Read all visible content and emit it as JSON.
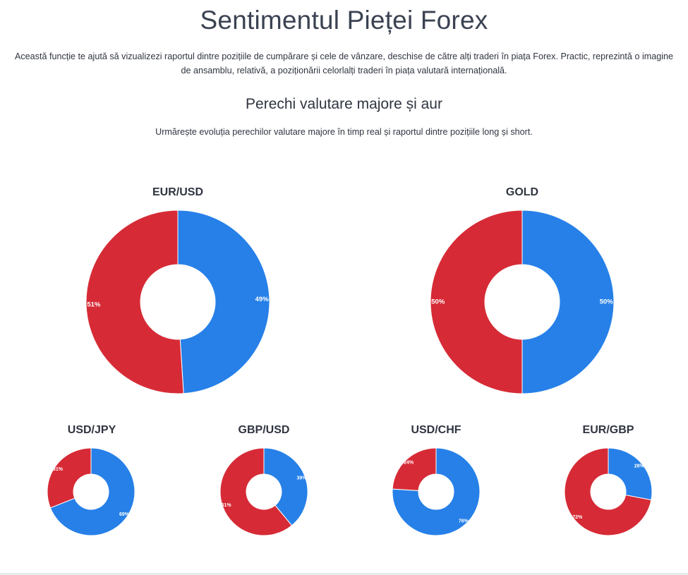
{
  "header": {
    "title": "Sentimentul Pieței Forex",
    "intro": "Această funcție te ajută să vizualizezi raportul dintre pozițiile de cumpărare și cele de vânzare, deschise de către alți traderi în piața Forex. Practic, reprezintă o imagine de ansamblu, relativă, a poziționării celorlalți traderi în piața valutară internațională."
  },
  "section": {
    "title": "Perechi valutare majore și aur",
    "subtitle": "Urmărește evoluția perechilor valutare majore în timp real și raportul dintre pozițiile long și short."
  },
  "colors": {
    "long": "#2680e8",
    "short": "#d62b36"
  },
  "chart_data": [
    {
      "type": "pie",
      "title": "EUR/USD",
      "values": [
        49,
        51
      ],
      "labels": [
        "49%",
        "51%"
      ],
      "colors": [
        "#2680e8",
        "#d62b36"
      ]
    },
    {
      "type": "pie",
      "title": "GOLD",
      "values": [
        50,
        50
      ],
      "labels": [
        "50%",
        "50%"
      ],
      "colors": [
        "#2680e8",
        "#d62b36"
      ]
    },
    {
      "type": "pie",
      "title": "USD/JPY",
      "values": [
        69,
        31
      ],
      "labels": [
        "69%",
        "31%"
      ],
      "colors": [
        "#2680e8",
        "#d62b36"
      ]
    },
    {
      "type": "pie",
      "title": "GBP/USD",
      "values": [
        39,
        61
      ],
      "labels": [
        "39%",
        "61%"
      ],
      "colors": [
        "#2680e8",
        "#d62b36"
      ]
    },
    {
      "type": "pie",
      "title": "USD/CHF",
      "values": [
        76,
        24
      ],
      "labels": [
        "76%",
        "24%"
      ],
      "colors": [
        "#2680e8",
        "#d62b36"
      ]
    },
    {
      "type": "pie",
      "title": "EUR/GBP",
      "values": [
        28,
        72
      ],
      "labels": [
        "28%",
        "72%"
      ],
      "colors": [
        "#2680e8",
        "#d62b36"
      ]
    }
  ]
}
